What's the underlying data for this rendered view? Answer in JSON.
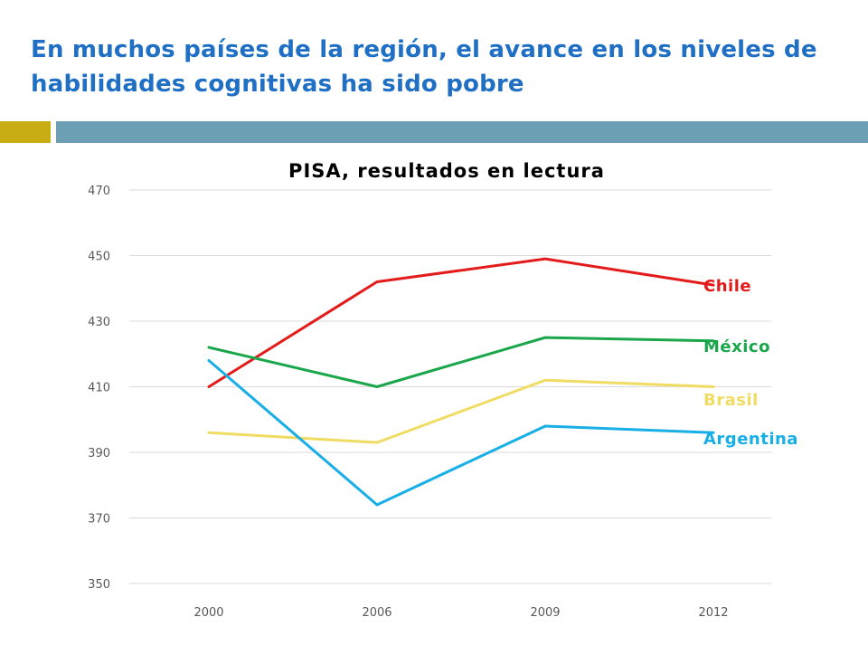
{
  "slide": {
    "title": "En muchos países de la región, el avance en los niveles de habilidades cognitivas ha sido pobre"
  },
  "colors": {
    "title": "#1f6fc5",
    "rule_gold": "#c8ad14",
    "rule_teal": "#6c9fb3",
    "grid": "#d9d9d9",
    "tick_label": "#595959"
  },
  "chart_data": {
    "type": "line",
    "title": "PISA, resultados en lectura",
    "categories": [
      "2000",
      "2006",
      "2009",
      "2012"
    ],
    "ylim": [
      350,
      470
    ],
    "yticks": [
      350,
      370,
      390,
      410,
      430,
      450,
      470
    ],
    "grid": true,
    "legend": "direct labels at right end of lines",
    "series": [
      {
        "name": "Chile",
        "color": "#e31b1b",
        "values": [
          410,
          442,
          449,
          441
        ]
      },
      {
        "name": "México",
        "color": "#1aa64a",
        "values": [
          422,
          410,
          425,
          424
        ]
      },
      {
        "name": "Brasil",
        "color": "#f0dc62",
        "values": [
          396,
          393,
          412,
          410
        ]
      },
      {
        "name": "Argentina",
        "color": "#18aee6",
        "values": [
          418,
          374,
          398,
          396
        ]
      }
    ]
  }
}
